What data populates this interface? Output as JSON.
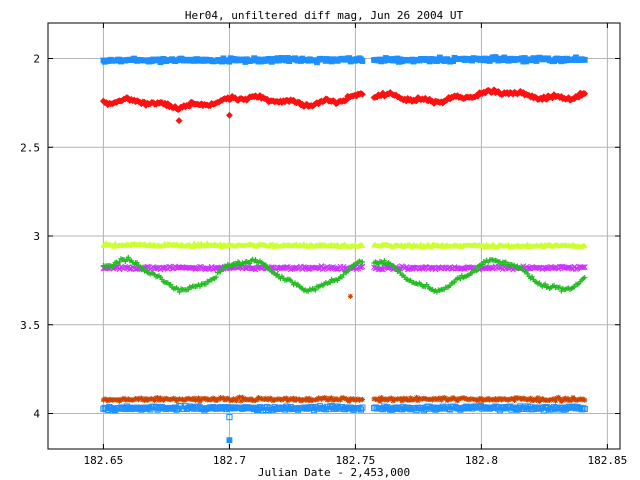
{
  "chart_data": {
    "type": "scatter",
    "title": "Her04, unfiltered diff mag, Jun 26 2004 UT",
    "xlabel": "Julian Date - 2,453,000",
    "ylabel": "",
    "xlim": [
      182.628,
      182.855
    ],
    "ylim": [
      4.2,
      1.8
    ],
    "y_inverted": true,
    "grid": true,
    "legend": "none",
    "x_ticks": [
      "182.65",
      "182.7",
      "182.75",
      "182.8",
      "182.85"
    ],
    "y_ticks": [
      "2",
      "2.5",
      "3",
      "3.5",
      "4"
    ],
    "x_range": [
      182.65,
      182.841
    ],
    "gap": [
      182.753,
      182.757
    ],
    "series": [
      {
        "color": "#1e8fff",
        "marker": "square",
        "baseline": 2.01,
        "trend": -0.005,
        "wave_amp": 0.0,
        "noise": 0.015,
        "outliers": [
          {
            "x": 182.7,
            "y": 4.15
          }
        ]
      },
      {
        "color": "#ff1010",
        "marker": "diamond",
        "baseline": 2.26,
        "trend": -0.06,
        "wave_amp": 0.02,
        "noise": 0.015,
        "outliers": [
          {
            "x": 182.68,
            "y": 2.35
          },
          {
            "x": 182.7,
            "y": 2.32
          }
        ]
      },
      {
        "color": "#ccff33",
        "marker": "triangle",
        "baseline": 3.05,
        "trend": 0.005,
        "wave_amp": 0.0,
        "noise": 0.012,
        "outliers": []
      },
      {
        "color": "#cc33ff",
        "marker": "x",
        "baseline": 3.18,
        "trend": 0.0,
        "wave_amp": 0.0,
        "noise": 0.012,
        "outliers": []
      },
      {
        "color": "#22bb22",
        "marker": "plus",
        "baseline": 3.22,
        "trend": 0.0,
        "wave_amp": 0.08,
        "noise": 0.015,
        "outliers": []
      },
      {
        "color": "#cc4400",
        "marker": "star",
        "baseline": 3.92,
        "trend": 0.0,
        "wave_amp": 0.0,
        "noise": 0.015,
        "outliers": [
          {
            "x": 182.748,
            "y": 3.34
          }
        ]
      },
      {
        "color": "#1e8fff",
        "marker": "square-open",
        "baseline": 3.97,
        "trend": 0.0,
        "wave_amp": 0.0,
        "noise": 0.015,
        "outliers": [
          {
            "x": 182.7,
            "y": 4.02
          }
        ]
      }
    ]
  }
}
